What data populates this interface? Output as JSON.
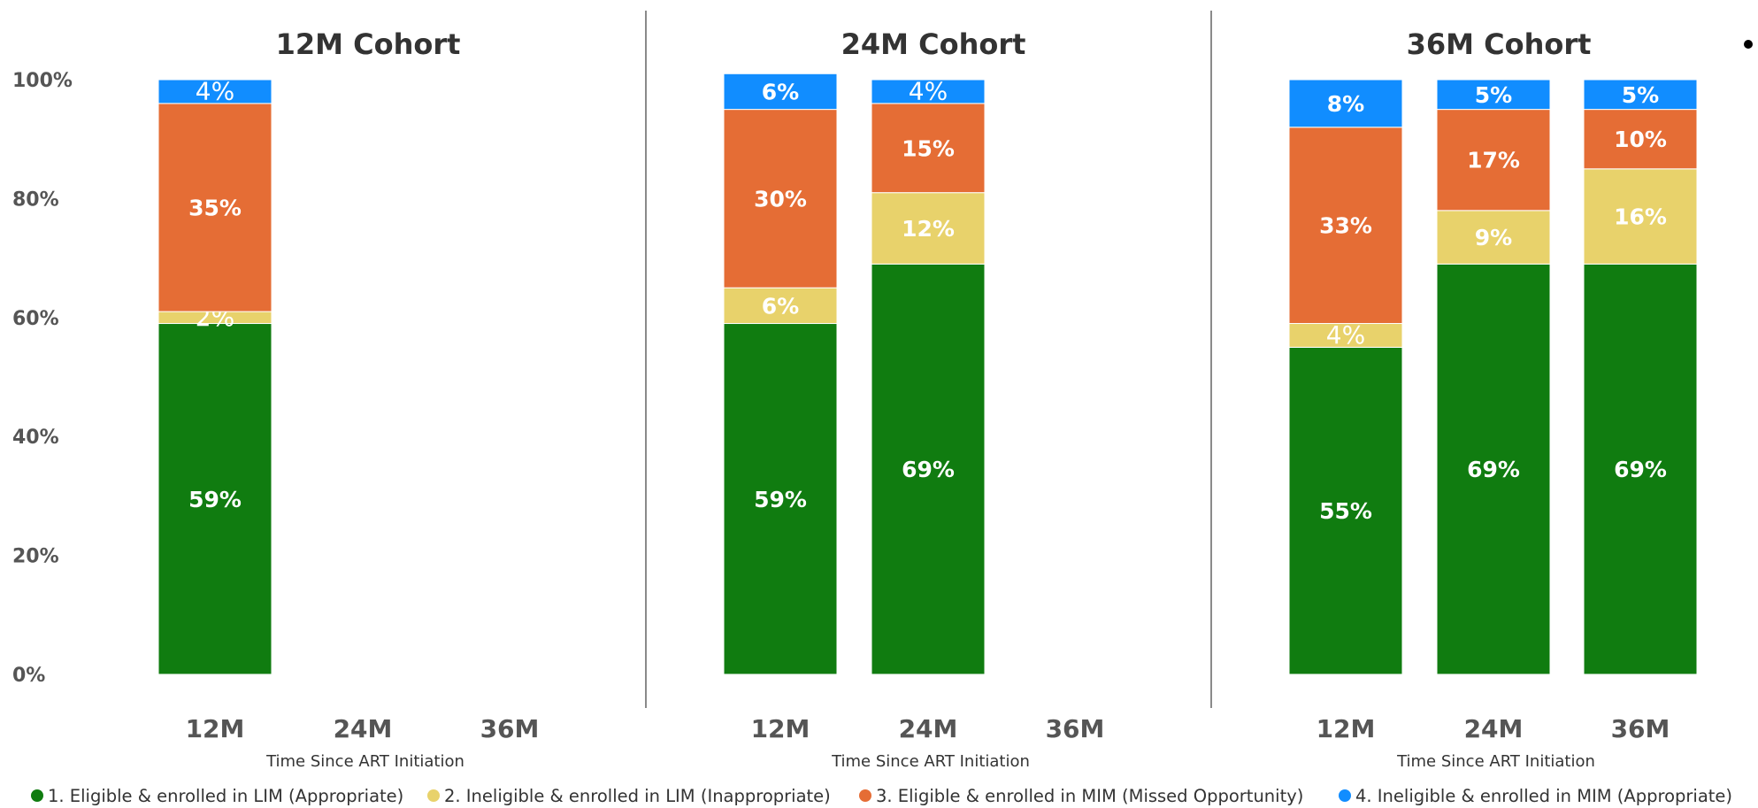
{
  "chart_data": {
    "type": "bar",
    "stacked": true,
    "ylim": [
      0,
      100
    ],
    "yticks": [
      "0%",
      "20%",
      "40%",
      "60%",
      "80%",
      "100%"
    ],
    "xlabel": "Time Since ART Initiation",
    "categories": [
      "12M",
      "24M",
      "36M"
    ],
    "grid": false,
    "legend_position": "bottom",
    "series": [
      {
        "name": "1. Eligible & enrolled in LIM (Appropriate)",
        "color": "#107c10"
      },
      {
        "name": "2. Ineligible & enrolled in LIM (Inappropriate)",
        "color": "#e8d26b"
      },
      {
        "name": "3. Eligible & enrolled in MIM (Missed Opportunity)",
        "color": "#e56d35"
      },
      {
        "name": "4. Ineligible & enrolled in MIM (Appropriate)",
        "color": "#118dff"
      }
    ],
    "panels": [
      {
        "title": "12M Cohort",
        "bars": [
          {
            "category": "12M",
            "values": [
              59,
              2,
              35,
              4
            ],
            "labels": [
              "59%",
              "2%",
              "35%",
              "4%"
            ],
            "label_style": [
              "bold",
              "plain",
              "bold",
              "plain"
            ]
          },
          {
            "category": "24M",
            "values": null
          },
          {
            "category": "36M",
            "values": null
          }
        ]
      },
      {
        "title": "24M Cohort",
        "bars": [
          {
            "category": "12M",
            "values": [
              59,
              6,
              30,
              6
            ],
            "labels": [
              "59%",
              "6%",
              "30%",
              "6%"
            ],
            "label_style": [
              "bold",
              "bold",
              "bold",
              "bold"
            ]
          },
          {
            "category": "24M",
            "values": [
              69,
              12,
              15,
              4
            ],
            "labels": [
              "69%",
              "12%",
              "15%",
              "4%"
            ],
            "label_style": [
              "bold",
              "bold",
              "bold",
              "plain"
            ]
          },
          {
            "category": "36M",
            "values": null
          }
        ]
      },
      {
        "title": "36M Cohort",
        "bars": [
          {
            "category": "12M",
            "values": [
              55,
              4,
              33,
              8
            ],
            "labels": [
              "55%",
              "4%",
              "33%",
              "8%"
            ],
            "label_style": [
              "bold",
              "plain",
              "bold",
              "bold"
            ]
          },
          {
            "category": "24M",
            "values": [
              69,
              9,
              17,
              5
            ],
            "labels": [
              "69%",
              "9%",
              "17%",
              "5%"
            ],
            "label_style": [
              "bold",
              "bold",
              "bold",
              "bold"
            ]
          },
          {
            "category": "36M",
            "values": [
              69,
              16,
              10,
              5
            ],
            "labels": [
              "69%",
              "16%",
              "10%",
              "5%"
            ],
            "label_style": [
              "bold",
              "bold",
              "bold",
              "bold"
            ]
          }
        ]
      }
    ]
  }
}
